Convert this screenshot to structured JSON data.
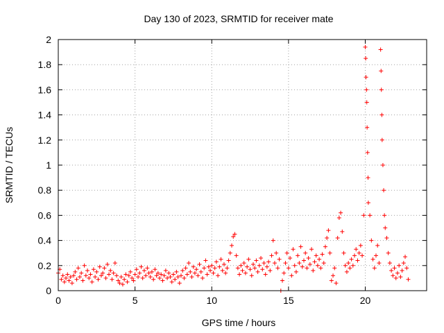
{
  "chart_data": {
    "type": "scatter",
    "title": "Day 130 of 2023, SRMTID for receiver mate",
    "xlabel": "GPS time / hours",
    "ylabel": "SRMTID / TECUs",
    "xlim": [
      0,
      24
    ],
    "ylim": [
      0,
      2
    ],
    "xticks": [
      0,
      5,
      10,
      15,
      20
    ],
    "xtick_labels": [
      "0",
      "5",
      "10",
      "15",
      "20"
    ],
    "yticks": [
      0,
      0.2,
      0.4,
      0.6,
      0.8,
      1,
      1.2,
      1.4,
      1.6,
      1.8,
      2
    ],
    "ytick_labels": [
      "0",
      "0.2",
      "0.4",
      "0.6",
      "0.8",
      "1",
      "1.2",
      "1.4",
      "1.6",
      "1.8",
      "2"
    ],
    "grid": true,
    "marker": "+",
    "color": "#ff0000",
    "series": [
      {
        "name": "SRMTID",
        "points": [
          [
            0.0,
            0.14
          ],
          [
            0.1,
            0.17
          ],
          [
            0.2,
            0.09
          ],
          [
            0.3,
            0.12
          ],
          [
            0.4,
            0.07
          ],
          [
            0.5,
            0.1
          ],
          [
            0.6,
            0.13
          ],
          [
            0.7,
            0.08
          ],
          [
            0.8,
            0.11
          ],
          [
            0.9,
            0.06
          ],
          [
            1.0,
            0.12
          ],
          [
            1.1,
            0.15
          ],
          [
            1.2,
            0.09
          ],
          [
            1.3,
            0.18
          ],
          [
            1.4,
            0.11
          ],
          [
            1.5,
            0.14
          ],
          [
            1.6,
            0.08
          ],
          [
            1.7,
            0.2
          ],
          [
            1.8,
            0.12
          ],
          [
            1.9,
            0.16
          ],
          [
            2.0,
            0.1
          ],
          [
            2.1,
            0.13
          ],
          [
            2.2,
            0.07
          ],
          [
            2.3,
            0.17
          ],
          [
            2.4,
            0.11
          ],
          [
            2.5,
            0.15
          ],
          [
            2.6,
            0.09
          ],
          [
            2.7,
            0.19
          ],
          [
            2.8,
            0.12
          ],
          [
            2.9,
            0.14
          ],
          [
            3.0,
            0.18
          ],
          [
            3.1,
            0.1
          ],
          [
            3.2,
            0.21
          ],
          [
            3.3,
            0.13
          ],
          [
            3.4,
            0.16
          ],
          [
            3.5,
            0.09
          ],
          [
            3.6,
            0.14
          ],
          [
            3.7,
            0.22
          ],
          [
            3.8,
            0.12
          ],
          [
            3.9,
            0.08
          ],
          [
            4.0,
            0.06
          ],
          [
            4.1,
            0.11
          ],
          [
            4.2,
            0.05
          ],
          [
            4.3,
            0.09
          ],
          [
            4.4,
            0.13
          ],
          [
            4.5,
            0.07
          ],
          [
            4.6,
            0.12
          ],
          [
            4.7,
            0.15
          ],
          [
            4.8,
            0.1
          ],
          [
            4.9,
            0.08
          ],
          [
            5.0,
            0.13
          ],
          [
            5.1,
            0.17
          ],
          [
            5.2,
            0.11
          ],
          [
            5.3,
            0.14
          ],
          [
            5.4,
            0.19
          ],
          [
            5.5,
            0.1
          ],
          [
            5.6,
            0.16
          ],
          [
            5.7,
            0.12
          ],
          [
            5.8,
            0.18
          ],
          [
            5.9,
            0.14
          ],
          [
            6.0,
            0.11
          ],
          [
            6.1,
            0.15
          ],
          [
            6.2,
            0.09
          ],
          [
            6.3,
            0.17
          ],
          [
            6.4,
            0.12
          ],
          [
            6.5,
            0.14
          ],
          [
            6.6,
            0.1
          ],
          [
            6.7,
            0.13
          ],
          [
            6.8,
            0.08
          ],
          [
            6.9,
            0.12
          ],
          [
            7.0,
            0.16
          ],
          [
            7.1,
            0.1
          ],
          [
            7.2,
            0.14
          ],
          [
            7.3,
            0.11
          ],
          [
            7.4,
            0.07
          ],
          [
            7.5,
            0.13
          ],
          [
            7.6,
            0.09
          ],
          [
            7.7,
            0.15
          ],
          [
            7.8,
            0.11
          ],
          [
            7.9,
            0.06
          ],
          [
            8.0,
            0.12
          ],
          [
            8.1,
            0.16
          ],
          [
            8.2,
            0.1
          ],
          [
            8.3,
            0.18
          ],
          [
            8.4,
            0.13
          ],
          [
            8.5,
            0.22
          ],
          [
            8.6,
            0.15
          ],
          [
            8.7,
            0.11
          ],
          [
            8.8,
            0.19
          ],
          [
            8.9,
            0.14
          ],
          [
            9.0,
            0.17
          ],
          [
            9.1,
            0.12
          ],
          [
            9.2,
            0.21
          ],
          [
            9.3,
            0.15
          ],
          [
            9.4,
            0.1
          ],
          [
            9.5,
            0.18
          ],
          [
            9.6,
            0.24
          ],
          [
            9.7,
            0.13
          ],
          [
            9.8,
            0.19
          ],
          [
            9.9,
            0.16
          ],
          [
            10.0,
            0.2
          ],
          [
            10.1,
            0.14
          ],
          [
            10.2,
            0.18
          ],
          [
            10.3,
            0.23
          ],
          [
            10.4,
            0.12
          ],
          [
            10.5,
            0.19
          ],
          [
            10.6,
            0.25
          ],
          [
            10.7,
            0.16
          ],
          [
            10.8,
            0.21
          ],
          [
            10.9,
            0.14
          ],
          [
            11.0,
            0.18
          ],
          [
            11.1,
            0.24
          ],
          [
            11.2,
            0.3
          ],
          [
            11.3,
            0.36
          ],
          [
            11.4,
            0.43
          ],
          [
            11.5,
            0.45
          ],
          [
            11.6,
            0.28
          ],
          [
            11.7,
            0.18
          ],
          [
            11.8,
            0.13
          ],
          [
            11.9,
            0.2
          ],
          [
            12.0,
            0.16
          ],
          [
            12.1,
            0.22
          ],
          [
            12.2,
            0.14
          ],
          [
            12.3,
            0.19
          ],
          [
            12.4,
            0.25
          ],
          [
            12.5,
            0.17
          ],
          [
            12.6,
            0.12
          ],
          [
            12.7,
            0.21
          ],
          [
            12.8,
            0.18
          ],
          [
            12.9,
            0.24
          ],
          [
            13.0,
            0.15
          ],
          [
            13.1,
            0.2
          ],
          [
            13.2,
            0.26
          ],
          [
            13.3,
            0.17
          ],
          [
            13.4,
            0.22
          ],
          [
            13.5,
            0.13
          ],
          [
            13.6,
            0.19
          ],
          [
            13.7,
            0.23
          ],
          [
            13.8,
            0.16
          ],
          [
            13.9,
            0.28
          ],
          [
            14.0,
            0.4
          ],
          [
            14.1,
            0.22
          ],
          [
            14.2,
            0.3
          ],
          [
            14.3,
            0.18
          ],
          [
            14.4,
            0.25
          ],
          [
            14.5,
            0.0
          ],
          [
            14.6,
            0.08
          ],
          [
            14.7,
            0.14
          ],
          [
            14.8,
            0.22
          ],
          [
            14.9,
            0.3
          ],
          [
            15.0,
            0.18
          ],
          [
            15.1,
            0.26
          ],
          [
            15.2,
            0.12
          ],
          [
            15.3,
            0.33
          ],
          [
            15.4,
            0.2
          ],
          [
            15.5,
            0.15
          ],
          [
            15.6,
            0.28
          ],
          [
            15.7,
            0.22
          ],
          [
            15.8,
            0.35
          ],
          [
            15.9,
            0.19
          ],
          [
            16.0,
            0.24
          ],
          [
            16.1,
            0.3
          ],
          [
            16.2,
            0.18
          ],
          [
            16.3,
            0.26
          ],
          [
            16.4,
            0.21
          ],
          [
            16.5,
            0.33
          ],
          [
            16.6,
            0.16
          ],
          [
            16.7,
            0.23
          ],
          [
            16.8,
            0.28
          ],
          [
            16.9,
            0.2
          ],
          [
            17.0,
            0.25
          ],
          [
            17.1,
            0.18
          ],
          [
            17.2,
            0.29
          ],
          [
            17.3,
            0.22
          ],
          [
            17.4,
            0.35
          ],
          [
            17.5,
            0.42
          ],
          [
            17.6,
            0.48
          ],
          [
            17.7,
            0.3
          ],
          [
            17.8,
            0.08
          ],
          [
            17.9,
            0.12
          ],
          [
            18.0,
            0.18
          ],
          [
            18.1,
            0.06
          ],
          [
            18.2,
            0.42
          ],
          [
            18.3,
            0.58
          ],
          [
            18.4,
            0.62
          ],
          [
            18.5,
            0.47
          ],
          [
            18.6,
            0.3
          ],
          [
            18.7,
            0.2
          ],
          [
            18.8,
            0.15
          ],
          [
            18.9,
            0.22
          ],
          [
            19.0,
            0.18
          ],
          [
            19.1,
            0.25
          ],
          [
            19.2,
            0.2
          ],
          [
            19.3,
            0.28
          ],
          [
            19.4,
            0.33
          ],
          [
            19.5,
            0.24
          ],
          [
            19.6,
            0.3
          ],
          [
            19.7,
            0.36
          ],
          [
            19.8,
            0.28
          ],
          [
            19.9,
            0.6
          ],
          [
            20.0,
            1.94
          ],
          [
            20.03,
            1.85
          ],
          [
            20.05,
            1.7
          ],
          [
            20.08,
            1.6
          ],
          [
            20.1,
            1.5
          ],
          [
            20.12,
            1.3
          ],
          [
            20.15,
            1.1
          ],
          [
            20.18,
            0.9
          ],
          [
            20.2,
            0.7
          ],
          [
            20.3,
            0.6
          ],
          [
            20.4,
            0.4
          ],
          [
            20.5,
            0.25
          ],
          [
            20.6,
            0.18
          ],
          [
            20.7,
            0.28
          ],
          [
            20.8,
            0.36
          ],
          [
            20.9,
            0.22
          ],
          [
            21.0,
            1.92
          ],
          [
            21.03,
            1.75
          ],
          [
            21.05,
            1.6
          ],
          [
            21.08,
            1.4
          ],
          [
            21.1,
            1.2
          ],
          [
            21.15,
            1.0
          ],
          [
            21.2,
            0.8
          ],
          [
            21.25,
            0.6
          ],
          [
            21.3,
            0.5
          ],
          [
            21.4,
            0.42
          ],
          [
            21.5,
            0.3
          ],
          [
            21.6,
            0.22
          ],
          [
            21.7,
            0.16
          ],
          [
            21.8,
            0.12
          ],
          [
            21.9,
            0.18
          ],
          [
            22.0,
            0.1
          ],
          [
            22.1,
            0.14
          ],
          [
            22.2,
            0.2
          ],
          [
            22.3,
            0.11
          ],
          [
            22.4,
            0.16
          ],
          [
            22.5,
            0.22
          ],
          [
            22.6,
            0.27
          ],
          [
            22.7,
            0.18
          ],
          [
            22.8,
            0.09
          ]
        ]
      }
    ]
  }
}
